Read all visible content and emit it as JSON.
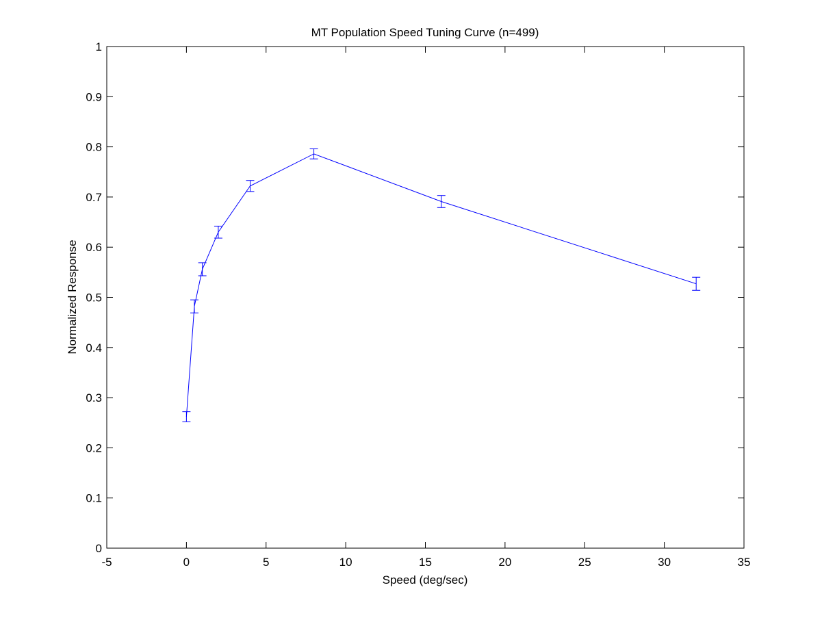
{
  "chart_data": {
    "type": "line",
    "title": "MT Population Speed Tuning Curve (n=499)",
    "xlabel": "Speed (deg/sec)",
    "ylabel": "Normalized Response",
    "xlim": [
      -5,
      35
    ],
    "ylim": [
      0,
      1
    ],
    "xticks": [
      -5,
      0,
      5,
      10,
      15,
      20,
      25,
      30,
      35
    ],
    "yticks": [
      0,
      0.1,
      0.2,
      0.3,
      0.4,
      0.5,
      0.6,
      0.7,
      0.8,
      0.9,
      1
    ],
    "grid": false,
    "legend": "none",
    "series": [
      {
        "color": "#0000ff",
        "x": [
          0,
          0.5,
          1,
          2,
          4,
          8,
          16,
          32
        ],
        "y": [
          0.262,
          0.482,
          0.556,
          0.63,
          0.722,
          0.786,
          0.691,
          0.527
        ],
        "error": [
          0.01,
          0.013,
          0.013,
          0.012,
          0.011,
          0.01,
          0.012,
          0.013
        ]
      }
    ]
  }
}
